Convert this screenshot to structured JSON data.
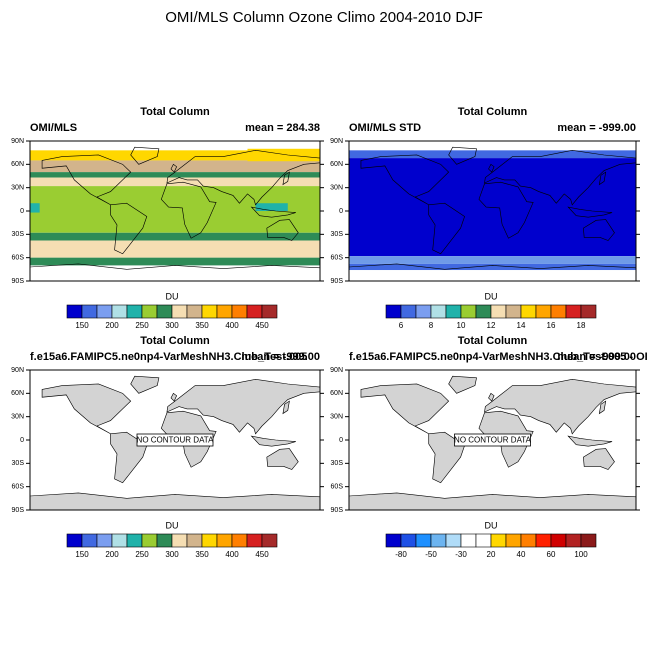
{
  "title": "OMI/MLS Column Ozone Climo 2004-2010 DJF",
  "panels": [
    {
      "header": "Total Column",
      "left": "OMI/MLS",
      "right": "mean = 284.38",
      "lat_labels": [
        "90N",
        "60N",
        "30N",
        "0",
        "30S",
        "60S",
        "90S"
      ],
      "field": "ozone",
      "colorbar": {
        "label": "DU",
        "ticks": [
          "150",
          "200",
          "250",
          "300",
          "350",
          "400",
          "450"
        ],
        "colors": [
          "#0000cd",
          "#4169e1",
          "#7b9ef0",
          "#b0e0e6",
          "#20b2aa",
          "#9acd32",
          "#2e8b57",
          "#f5deb3",
          "#d2b48c",
          "#ffd700",
          "#ffa500",
          "#ff7f00",
          "#d62020",
          "#a52a2a"
        ]
      }
    },
    {
      "header": "Total Column",
      "left": "OMI/MLS STD",
      "right": "mean = -999.00",
      "lat_labels": [
        "90N",
        "60N",
        "30N",
        "0",
        "30S",
        "60S",
        "90S"
      ],
      "field": "std",
      "colorbar": {
        "label": "DU",
        "ticks": [
          "6",
          "8",
          "10",
          "12",
          "14",
          "16",
          "18"
        ],
        "colors": [
          "#0000cd",
          "#4169e1",
          "#7b9ef0",
          "#b0e0e6",
          "#20b2aa",
          "#9acd32",
          "#2e8b57",
          "#f5deb3",
          "#d2b48c",
          "#ffd700",
          "#ffa500",
          "#ff7f00",
          "#d62020",
          "#a52a2a"
        ]
      }
    },
    {
      "header": "Total Column",
      "left": "f.e15a6.FAMIPC5.ne0np4-VarMeshNH3.Club_Test.005",
      "right": "mean = -999.00",
      "lat_labels": [
        "90N",
        "60N",
        "30N",
        "0",
        "30S",
        "60S",
        "90S"
      ],
      "field": "none",
      "note": "NO CONTOUR DATA",
      "colorbar": {
        "label": "DU",
        "ticks": [
          "150",
          "200",
          "250",
          "300",
          "350",
          "400",
          "450"
        ],
        "colors": [
          "#0000cd",
          "#4169e1",
          "#7b9ef0",
          "#b0e0e6",
          "#20b2aa",
          "#9acd32",
          "#2e8b57",
          "#f5deb3",
          "#d2b48c",
          "#ffd700",
          "#ffa500",
          "#ff7f00",
          "#d62020",
          "#a52a2a"
        ]
      }
    },
    {
      "header": "Total Column",
      "left": "f.e15a6.FAMIPC5.ne0np4-VarMeshNH3.Club_Test.005 - OI",
      "right": "mean = -999.00",
      "lat_labels": [
        "90N",
        "60N",
        "30N",
        "0",
        "30S",
        "60S",
        "90S"
      ],
      "field": "none",
      "note": "NO CONTOUR DATA",
      "colorbar": {
        "label": "DU",
        "ticks": [
          "-80",
          "-50",
          "-30",
          "20",
          "40",
          "60",
          "100"
        ],
        "colors": [
          "#0000cd",
          "#1e50e6",
          "#1e90ff",
          "#6cb4f0",
          "#b0dcf8",
          "#ffffff",
          "#ffffff",
          "#ffd700",
          "#ffa500",
          "#ff7f00",
          "#ff2000",
          "#d00000",
          "#b22222",
          "#8b1a1a"
        ]
      }
    }
  ]
}
